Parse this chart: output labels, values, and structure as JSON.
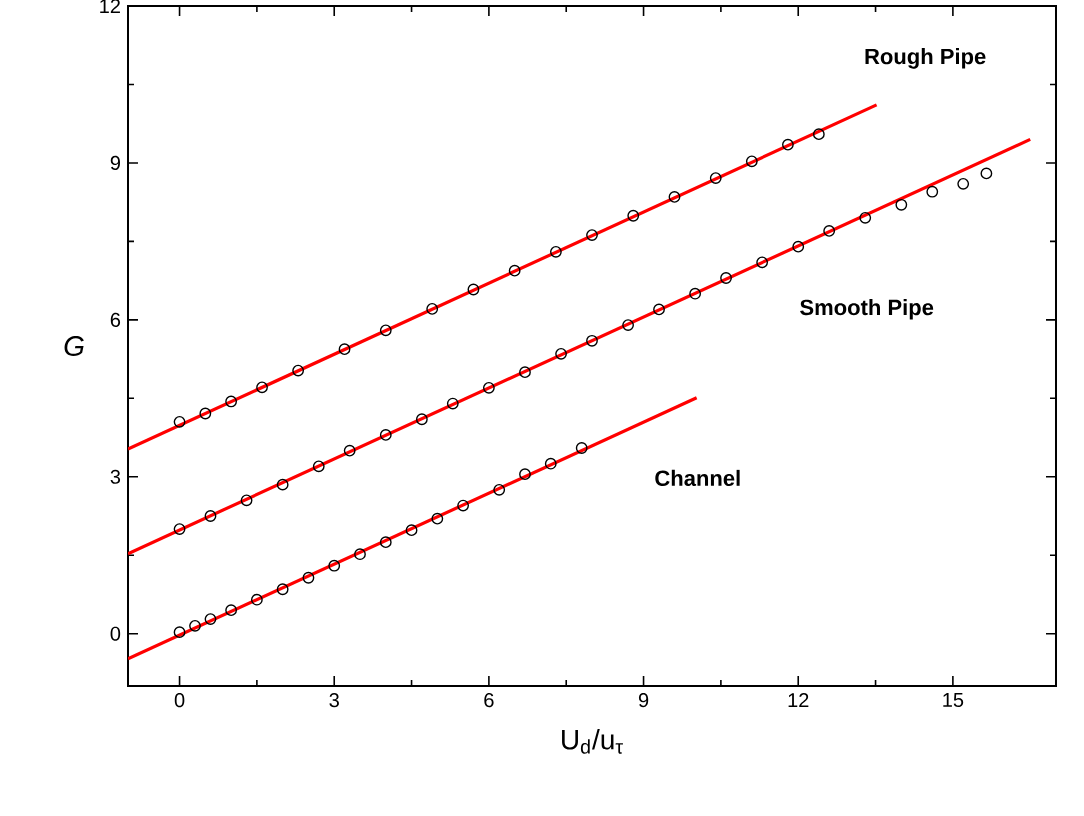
{
  "chart_data": {
    "type": "scatter",
    "xlabel": "U$_{d}$/u$_{τ}$",
    "ylabel": "G",
    "xlim": [
      -1,
      17
    ],
    "ylim": [
      -1,
      12
    ],
    "xticks": [
      0,
      3,
      6,
      9,
      12,
      15
    ],
    "yticks": [
      0,
      3,
      6,
      9,
      12
    ],
    "grid": false,
    "marker": "circle",
    "series": [
      {
        "color": "#000000",
        "x": [
          0,
          0.3,
          0.6,
          1.0,
          1.5,
          2.0,
          2.5,
          3.0,
          3.5,
          4.0,
          4.5,
          5.0,
          5.5,
          6.2,
          6.7,
          7.2,
          7.8
        ],
        "values": [
          0.03,
          0.15,
          0.28,
          0.45,
          0.65,
          0.85,
          1.07,
          1.3,
          1.52,
          1.75,
          1.98,
          2.2,
          2.45,
          2.75,
          3.05,
          3.25,
          3.55
        ]
      },
      {
        "color": "#000000",
        "x": [
          0,
          0.6,
          1.3,
          2.0,
          2.7,
          3.3,
          4.0,
          4.7,
          5.3,
          6.0,
          6.7,
          7.4,
          8.0,
          8.7,
          9.3,
          10.0,
          10.6,
          11.3,
          12.0,
          12.6,
          13.3,
          14.0,
          14.6,
          15.2,
          15.65
        ],
        "values": [
          2.0,
          2.25,
          2.55,
          2.85,
          3.2,
          3.5,
          3.8,
          4.1,
          4.4,
          4.7,
          5.0,
          5.35,
          5.6,
          5.9,
          6.2,
          6.5,
          6.8,
          7.1,
          7.4,
          7.7,
          7.95,
          8.2,
          8.45,
          8.6,
          8.8
        ]
      },
      {
        "color": "#000000",
        "x": [
          0,
          0.5,
          1.0,
          1.6,
          2.3,
          3.2,
          4.0,
          4.9,
          5.7,
          6.5,
          7.3,
          8.0,
          8.8,
          9.6,
          10.4,
          11.1,
          11.8,
          12.4
        ],
        "values": [
          4.05,
          4.21,
          4.44,
          4.71,
          5.03,
          5.44,
          5.8,
          6.21,
          6.58,
          6.94,
          7.3,
          7.62,
          7.99,
          8.35,
          8.71,
          9.03,
          9.35,
          9.55
        ]
      },
      {
        "type": "line",
        "color": "#ff0000",
        "marker": "none",
        "x": [
          -1,
          10.03
        ],
        "values": [
          -0.48,
          4.51
        ]
      },
      {
        "type": "line",
        "color": "#ff0000",
        "marker": "none",
        "x": [
          -1,
          16.5
        ],
        "values": [
          1.53,
          9.45
        ]
      },
      {
        "type": "line",
        "color": "#ff0000",
        "marker": "none",
        "x": [
          -1,
          13.52
        ],
        "values": [
          3.53,
          10.11
        ]
      }
    ],
    "annotations": [
      "Rough Pipe",
      "Smooth Pipe",
      "Channel"
    ]
  }
}
